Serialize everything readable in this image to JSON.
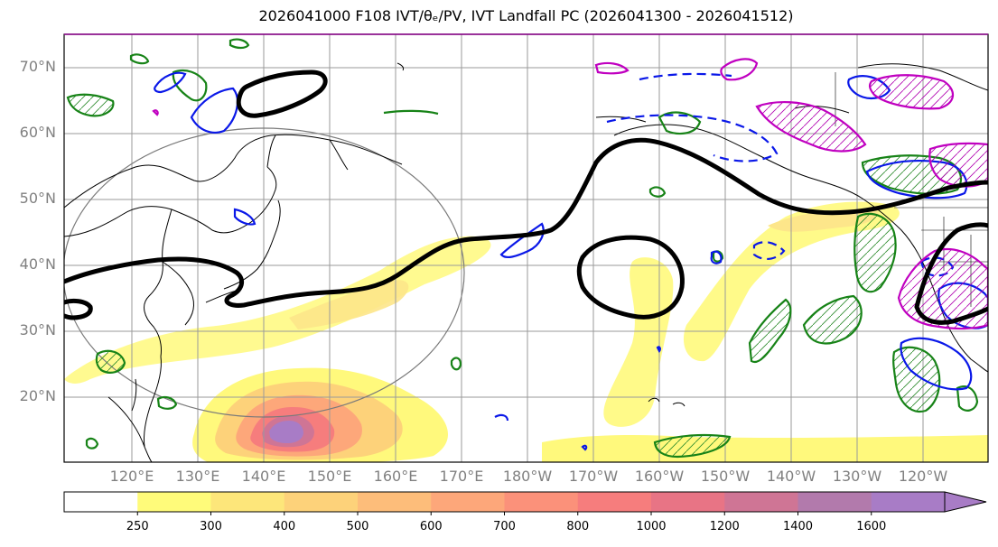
{
  "title": "2026041000 F108 IVT/θₑ/PV, IVT Landfall PC (2026041300 - 2026041512)",
  "lat_labels": [
    "70°N",
    "60°N",
    "50°N",
    "40°N",
    "30°N",
    "20°N"
  ],
  "lon_labels": [
    "120°E",
    "130°E",
    "140°E",
    "150°E",
    "160°E",
    "170°E",
    "180°W",
    "170°W",
    "160°W",
    "150°W",
    "140°W",
    "130°W",
    "120°W"
  ],
  "colorbar": {
    "ticks": [
      "250",
      "300",
      "400",
      "500",
      "600",
      "700",
      "800",
      "1000",
      "1200",
      "1400",
      "1600"
    ],
    "colors": [
      "#ffffff",
      "#fffb7a",
      "#fde67a",
      "#fdd27a",
      "#fdbd7a",
      "#fda77a",
      "#fb917a",
      "#f67d7d",
      "#e87485",
      "#cf7595",
      "#b27aac",
      "#a87cc6"
    ]
  }
}
